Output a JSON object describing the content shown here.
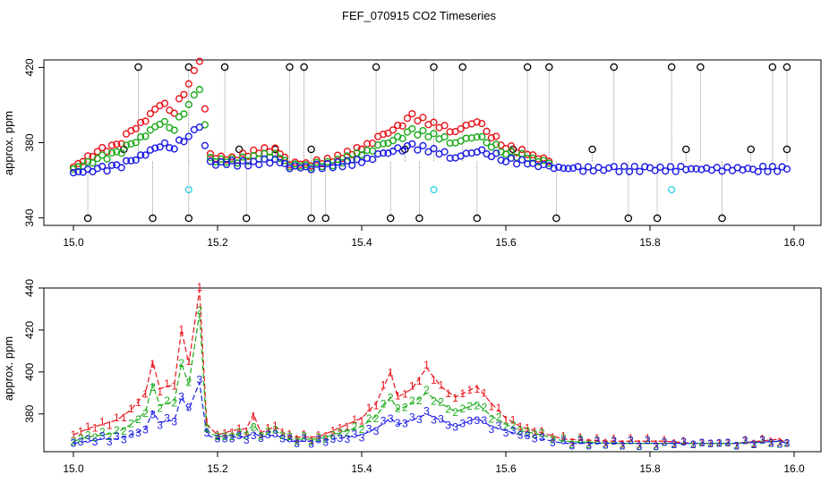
{
  "title": "FEF_070915  CO2 Timeseries",
  "colors": {
    "black": "#000000",
    "red": "#e8141b",
    "green": "#1aaa1a",
    "blue": "#1a1ae6",
    "cyan": "#33d6e6",
    "gray_line": "#9a9a9a"
  },
  "chart_data": [
    {
      "type": "scatter",
      "ylabel": "approx. ppm",
      "xlabel": "",
      "xlim": [
        15.0,
        16.0
      ],
      "ylim": [
        336,
        424
      ],
      "xticks": [
        "15.0",
        "15.2",
        "15.4",
        "15.6",
        "15.8",
        "16.0"
      ],
      "yticks": [
        "340",
        "380",
        "420"
      ],
      "ytick_values": [
        340,
        380,
        420
      ],
      "xtick_values": [
        15.0,
        15.2,
        15.4,
        15.6,
        15.8,
        16.0
      ],
      "spikes_high": [
        15.09,
        15.16,
        15.21,
        15.3,
        15.32,
        15.42,
        15.5,
        15.54,
        15.63,
        15.66,
        15.75,
        15.83,
        15.87,
        15.97,
        15.99
      ],
      "spikes_mid": [
        15.07,
        15.23,
        15.28,
        15.33,
        15.4,
        15.46,
        15.61,
        15.72,
        15.85,
        15.94,
        15.99
      ],
      "spikes_low": [
        15.02,
        15.11,
        15.16,
        15.24,
        15.33,
        15.35,
        15.44,
        15.48,
        15.56,
        15.67,
        15.77,
        15.81,
        15.9
      ],
      "cyan_points": [
        [
          15.16,
          355
        ],
        [
          15.5,
          355
        ],
        [
          15.83,
          355
        ]
      ],
      "series": [
        {
          "name": "red",
          "color": "red",
          "x": [
            15.0,
            15.02,
            15.04,
            15.06,
            15.08,
            15.1,
            15.12,
            15.14,
            15.16,
            15.175,
            15.19,
            15.22,
            15.25,
            15.28,
            15.3,
            15.33,
            15.36,
            15.4,
            15.43,
            15.45,
            15.47,
            15.5,
            15.53,
            15.56,
            15.58,
            15.6,
            15.63,
            15.66
          ],
          "y": [
            367,
            372,
            376,
            378,
            386,
            392,
            401,
            397,
            412,
            423,
            373,
            371,
            375,
            377,
            369,
            369,
            371,
            377,
            384,
            388,
            394,
            390,
            386,
            392,
            384,
            378,
            374,
            370
          ]
        },
        {
          "name": "green",
          "color": "green",
          "x": [
            15.0,
            15.02,
            15.04,
            15.06,
            15.08,
            15.1,
            15.12,
            15.14,
            15.16,
            15.175,
            15.19,
            15.22,
            15.25,
            15.28,
            15.3,
            15.33,
            15.36,
            15.4,
            15.43,
            15.45,
            15.47,
            15.5,
            15.53,
            15.56,
            15.58,
            15.6,
            15.63,
            15.66
          ],
          "y": [
            366,
            369,
            372,
            374,
            379,
            384,
            391,
            388,
            401,
            408,
            371,
            370,
            372,
            374,
            368,
            368,
            369,
            374,
            379,
            382,
            386,
            384,
            380,
            384,
            379,
            375,
            372,
            369
          ]
        },
        {
          "name": "blue",
          "color": "blue",
          "x": [
            15.0,
            15.02,
            15.04,
            15.06,
            15.08,
            15.1,
            15.12,
            15.14,
            15.16,
            15.175,
            15.19,
            15.22,
            15.25,
            15.28,
            15.3,
            15.33,
            15.36,
            15.4,
            15.43,
            15.45,
            15.47,
            15.5,
            15.53,
            15.56,
            15.58,
            15.6,
            15.63,
            15.66,
            15.7,
            15.75,
            15.8,
            15.85,
            15.9,
            15.95,
            15.99
          ],
          "y": [
            364,
            365,
            366,
            367,
            370,
            374,
            379,
            378,
            384,
            388,
            369,
            369,
            369,
            371,
            367,
            367,
            368,
            370,
            374,
            376,
            378,
            376,
            372,
            376,
            374,
            371,
            369,
            367,
            366,
            366,
            366,
            366,
            366,
            366,
            366
          ]
        }
      ]
    },
    {
      "type": "line",
      "ylabel": "approx. ppm",
      "xlabel": "",
      "xlim": [
        15.0,
        16.0
      ],
      "ylim": [
        362,
        440
      ],
      "xticks": [
        "15.0",
        "15.2",
        "15.4",
        "15.6",
        "15.8",
        "16.0"
      ],
      "yticks": [
        "380",
        "400",
        "420",
        "440"
      ],
      "ytick_values": [
        380,
        400,
        420,
        440
      ],
      "xtick_values": [
        15.0,
        15.2,
        15.4,
        15.6,
        15.8,
        16.0
      ],
      "series": [
        {
          "name": "1",
          "color": "red",
          "x": [
            15.0,
            15.02,
            15.04,
            15.06,
            15.08,
            15.1,
            15.11,
            15.12,
            15.14,
            15.15,
            15.16,
            15.175,
            15.185,
            15.2,
            15.22,
            15.24,
            15.25,
            15.26,
            15.28,
            15.3,
            15.32,
            15.34,
            15.36,
            15.38,
            15.4,
            15.42,
            15.44,
            15.45,
            15.47,
            15.49,
            15.51,
            15.53,
            15.56,
            15.58,
            15.6,
            15.62,
            15.65,
            15.68,
            15.75,
            15.82,
            15.86,
            15.92,
            15.98,
            15.99
          ],
          "y": [
            370,
            373,
            375,
            377,
            382,
            390,
            405,
            392,
            394,
            420,
            404,
            439,
            375,
            370,
            372,
            373,
            380,
            371,
            374,
            369,
            369,
            369,
            372,
            375,
            378,
            385,
            400,
            388,
            392,
            402,
            393,
            388,
            393,
            385,
            378,
            374,
            371,
            368,
            367,
            367,
            366,
            366,
            368,
            366
          ]
        },
        {
          "name": "2",
          "color": "green",
          "x": [
            15.0,
            15.02,
            15.04,
            15.06,
            15.08,
            15.1,
            15.11,
            15.12,
            15.14,
            15.15,
            15.16,
            15.175,
            15.185,
            15.2,
            15.22,
            15.24,
            15.25,
            15.26,
            15.28,
            15.3,
            15.32,
            15.34,
            15.36,
            15.38,
            15.4,
            15.42,
            15.44,
            15.45,
            15.47,
            15.49,
            15.51,
            15.53,
            15.56,
            15.58,
            15.6,
            15.62,
            15.65,
            15.68,
            15.75,
            15.82,
            15.86,
            15.92,
            15.98,
            15.99
          ],
          "y": [
            367,
            369,
            370,
            371,
            375,
            381,
            394,
            384,
            386,
            404,
            394,
            428,
            372,
            369,
            370,
            371,
            375,
            370,
            372,
            368,
            368,
            368,
            370,
            372,
            374,
            379,
            388,
            382,
            385,
            390,
            385,
            381,
            385,
            379,
            375,
            372,
            370,
            367,
            366,
            366,
            366,
            366,
            367,
            366
          ]
        },
        {
          "name": "3",
          "color": "blue",
          "x": [
            15.0,
            15.02,
            15.04,
            15.06,
            15.08,
            15.1,
            15.11,
            15.12,
            15.14,
            15.15,
            15.16,
            15.175,
            15.185,
            15.2,
            15.22,
            15.24,
            15.25,
            15.26,
            15.28,
            15.3,
            15.32,
            15.34,
            15.36,
            15.38,
            15.4,
            15.42,
            15.44,
            15.45,
            15.47,
            15.49,
            15.51,
            15.53,
            15.56,
            15.58,
            15.6,
            15.62,
            15.65,
            15.68,
            15.75,
            15.82,
            15.86,
            15.92,
            15.98,
            15.99
          ],
          "y": [
            366,
            367,
            368,
            368,
            370,
            373,
            381,
            376,
            377,
            388,
            382,
            395,
            370,
            368,
            369,
            369,
            371,
            369,
            370,
            367,
            367,
            367,
            368,
            369,
            370,
            373,
            378,
            375,
            377,
            380,
            377,
            374,
            378,
            374,
            372,
            370,
            368,
            366,
            366,
            366,
            366,
            366,
            367,
            366
          ]
        }
      ]
    }
  ]
}
